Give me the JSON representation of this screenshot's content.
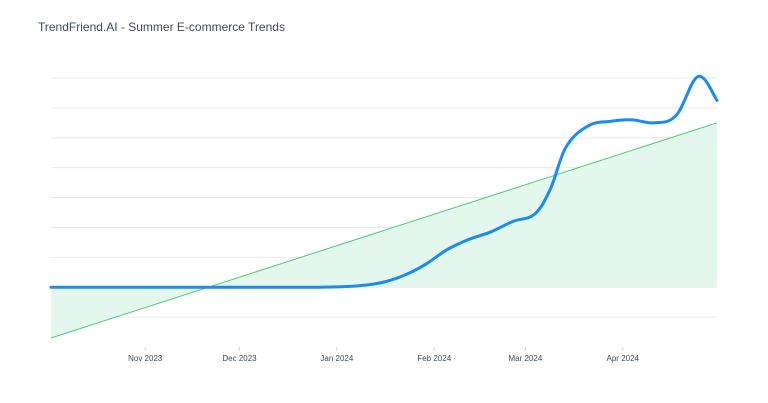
{
  "chart_data": {
    "type": "line",
    "title": "TrendFriend.AI - Summer E-commerce Trends",
    "xlabel": "",
    "ylabel": "",
    "x_axis": {
      "type": "date",
      "range": [
        "2023-10-02",
        "2024-05-01"
      ],
      "tick_labels": [
        {
          "date": "2023-11-01",
          "label": "Nov 2023"
        },
        {
          "date": "2023-12-01",
          "label": "Dec 2023"
        },
        {
          "date": "2024-01-01",
          "label": "Jan 2024"
        },
        {
          "date": "2024-02-01",
          "label": "Feb 2024"
        },
        {
          "date": "2024-03-01",
          "label": "Mar 2024"
        },
        {
          "date": "2024-04-01",
          "label": "Apr 2024"
        }
      ]
    },
    "y_axis": {
      "ylim": [
        -2,
        7
      ],
      "show_tick_labels": false,
      "gridlines": [
        -1,
        0,
        1,
        2,
        3,
        4,
        5,
        6,
        7
      ]
    },
    "grid": true,
    "series": [
      {
        "role": "trend",
        "color": "#1a8cf0",
        "points": [
          {
            "x": "2023-10-02",
            "y": 0
          },
          {
            "x": "2023-10-15",
            "y": 0
          },
          {
            "x": "2023-11-01",
            "y": 0
          },
          {
            "x": "2023-11-15",
            "y": 0
          },
          {
            "x": "2023-12-01",
            "y": 0
          },
          {
            "x": "2023-12-15",
            "y": 0
          },
          {
            "x": "2023-12-25",
            "y": 0
          },
          {
            "x": "2024-01-01",
            "y": 0.01
          },
          {
            "x": "2024-01-08",
            "y": 0.05
          },
          {
            "x": "2024-01-15",
            "y": 0.15
          },
          {
            "x": "2024-01-22",
            "y": 0.38
          },
          {
            "x": "2024-01-29",
            "y": 0.75
          },
          {
            "x": "2024-02-05",
            "y": 1.25
          },
          {
            "x": "2024-02-12",
            "y": 1.6
          },
          {
            "x": "2024-02-19",
            "y": 1.85
          },
          {
            "x": "2024-02-26",
            "y": 2.2
          },
          {
            "x": "2024-03-04",
            "y": 2.45
          },
          {
            "x": "2024-03-09",
            "y": 3.3
          },
          {
            "x": "2024-03-14",
            "y": 4.7
          },
          {
            "x": "2024-03-21",
            "y": 5.4
          },
          {
            "x": "2024-03-28",
            "y": 5.55
          },
          {
            "x": "2024-04-04",
            "y": 5.6
          },
          {
            "x": "2024-04-11",
            "y": 5.5
          },
          {
            "x": "2024-04-18",
            "y": 5.75
          },
          {
            "x": "2024-04-25",
            "y": 7.05
          },
          {
            "x": "2024-05-01",
            "y": 6.25
          }
        ]
      },
      {
        "role": "linear-fit",
        "color": "#4cc97a",
        "fill": "#e3f7ec",
        "points": [
          {
            "x": "2023-10-02",
            "y": -1.7
          },
          {
            "x": "2024-05-01",
            "y": 5.5
          }
        ]
      }
    ]
  }
}
